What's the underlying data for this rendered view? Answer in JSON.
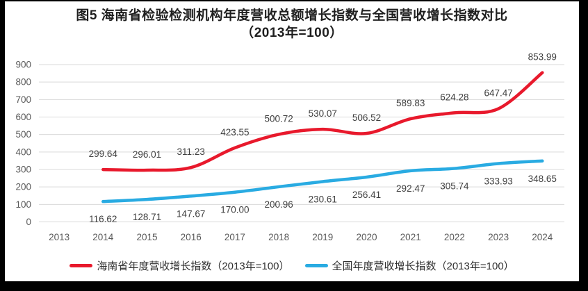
{
  "title": {
    "line1": "图5  海南省检验检测机构年度营收总额增长指数与全国营收增长指数对比",
    "line2": "（2013年=100）"
  },
  "chart_data": {
    "type": "line",
    "title": "图5 海南省检验检测机构年度营收总额增长指数与全国营收增长指数对比（2013年=100）",
    "categories": [
      "2013",
      "2014",
      "2015",
      "2016",
      "2017",
      "2018",
      "2019",
      "2020",
      "2021",
      "2022",
      "2023",
      "2024"
    ],
    "series": [
      {
        "name": "海南省年度营收增长指数（2013年=100）",
        "color": "#e8192c",
        "label_position": "above",
        "values": [
          null,
          299.64,
          296.01,
          311.23,
          423.55,
          500.72,
          530.07,
          506.52,
          589.83,
          624.28,
          647.47,
          853.99
        ]
      },
      {
        "name": "全国年度营收增长指数（2013年=100）",
        "color": "#29abe2",
        "label_position": "below",
        "values": [
          null,
          116.62,
          128.71,
          147.67,
          170.0,
          200.96,
          230.61,
          256.41,
          292.47,
          305.74,
          333.93,
          348.65
        ]
      }
    ],
    "xlabel": "",
    "ylabel": "",
    "ylim": [
      0,
      900
    ],
    "ytick_step": 100,
    "grid": true,
    "legend_position": "bottom",
    "data_label_decimals": 2
  },
  "colors": {
    "grid": "#d9d9d9",
    "axis_text": "#595959",
    "data_label_text": "#404040",
    "title_text": "#1f1f1f",
    "card_background": "#ffffff",
    "frame_background": "#000000"
  }
}
